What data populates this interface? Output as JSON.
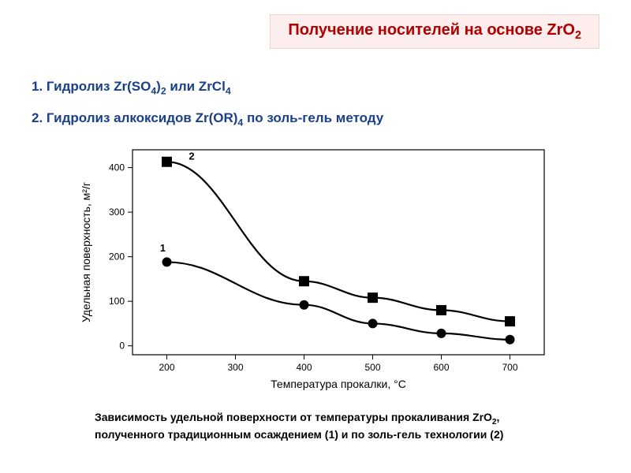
{
  "title": {
    "prefix": "Получение носителей на основе ZrO",
    "sub": "2"
  },
  "line1": {
    "t1": "1. Гидролиз Zr(SO",
    "s1": "4",
    "t2": ")",
    "s2": "2",
    "t3": " или ZrCl",
    "s3": "4"
  },
  "line2": {
    "t1": "2. Гидролиз алкоксидов Zr(OR)",
    "s1": "4",
    "t2": " по золь-гель методу"
  },
  "caption": {
    "l1a": "Зависимость  удельной поверхности от температуры прокаливания ZrO",
    "l1sub": "2",
    "l1b": ",",
    "l2": "полученного традиционным осаждением (1) и по золь-гель технологии (2)"
  },
  "chart": {
    "type": "line",
    "background_color": "#ffffff",
    "axis_color": "#000000",
    "grid_color": "none",
    "line_color": "#000000",
    "line_width": 2.2,
    "marker_colors": [
      "#000000",
      "#000000"
    ],
    "marker_sizes": [
      6,
      6.5
    ],
    "marker_shapes": [
      "circle",
      "square"
    ],
    "xlabel": "Температура прокалки, °C",
    "ylabel": "Удельная поверхность, м²/г",
    "xlim": [
      150,
      750
    ],
    "ylim": [
      -20,
      440
    ],
    "xticks": [
      200,
      300,
      400,
      500,
      600,
      700
    ],
    "yticks": [
      0,
      100,
      200,
      300,
      400
    ],
    "label_fontsize": 14,
    "tick_fontsize": 12,
    "series": [
      {
        "name": "1",
        "label_pos": {
          "x": 190,
          "y": 212
        },
        "x": [
          200,
          400,
          500,
          600,
          700
        ],
        "y": [
          188,
          92,
          50,
          28,
          14
        ]
      },
      {
        "name": "2",
        "label_pos": {
          "x": 232,
          "y": 418
        },
        "x": [
          200,
          400,
          500,
          600,
          700
        ],
        "y": [
          413,
          145,
          108,
          80,
          55
        ]
      }
    ]
  }
}
